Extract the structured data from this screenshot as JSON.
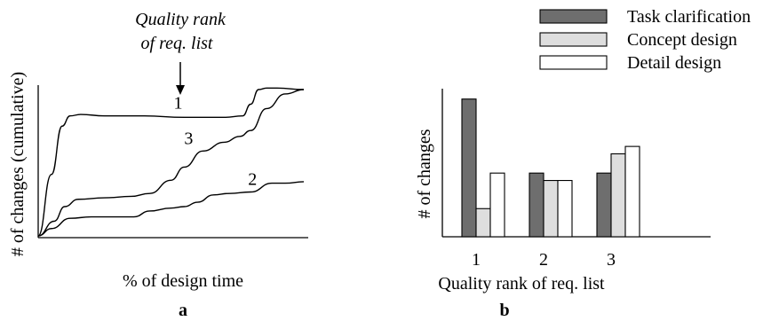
{
  "chart_data": [
    {
      "type": "line",
      "panel_label": "a",
      "xlabel": "% of design time",
      "ylabel": "# of changes (cumulative)",
      "annotation": {
        "text_line1": "Quality rank",
        "text_line2": "of req. list"
      },
      "x_range": [
        0,
        1
      ],
      "y_range": [
        0,
        1
      ],
      "series": [
        {
          "name": "1",
          "x": [
            0,
            0.05,
            0.09,
            0.12,
            0.16,
            0.25,
            0.4,
            0.55,
            0.7,
            0.77,
            0.8,
            0.83,
            0.86,
            0.9,
            1.0
          ],
          "y": [
            0.0,
            0.42,
            0.75,
            0.82,
            0.83,
            0.82,
            0.82,
            0.81,
            0.81,
            0.82,
            0.9,
            1.0,
            1.01,
            1.01,
            1.0
          ]
        },
        {
          "name": "3",
          "x": [
            0,
            0.06,
            0.1,
            0.15,
            0.25,
            0.35,
            0.42,
            0.5,
            0.55,
            0.62,
            0.7,
            0.76,
            0.8,
            0.86,
            0.93,
            1.0
          ],
          "y": [
            0.0,
            0.1,
            0.2,
            0.25,
            0.26,
            0.27,
            0.29,
            0.38,
            0.47,
            0.58,
            0.64,
            0.68,
            0.72,
            0.87,
            0.97,
            1.0
          ]
        },
        {
          "name": "2",
          "x": [
            0,
            0.05,
            0.12,
            0.2,
            0.3,
            0.36,
            0.42,
            0.5,
            0.55,
            0.6,
            0.66,
            0.72,
            0.8,
            0.88,
            0.93,
            1.0
          ],
          "y": [
            0.0,
            0.05,
            0.12,
            0.13,
            0.13,
            0.13,
            0.17,
            0.19,
            0.2,
            0.23,
            0.28,
            0.29,
            0.3,
            0.36,
            0.36,
            0.37
          ]
        }
      ]
    },
    {
      "type": "bar",
      "panel_label": "b",
      "xlabel": "Quality rank of req. list",
      "ylabel": "# of changes",
      "categories": [
        "1",
        "2",
        "3"
      ],
      "y_range": [
        0,
        10
      ],
      "legend_position": "top-right",
      "series": [
        {
          "name": "Task clarification",
          "color": "#6e6e6e",
          "values": [
            9.3,
            4.3,
            4.3
          ]
        },
        {
          "name": "Concept design",
          "color": "#dedede",
          "values": [
            1.9,
            3.8,
            5.6
          ]
        },
        {
          "name": "Detail design",
          "color": "#ffffff",
          "values": [
            4.3,
            3.8,
            6.1
          ]
        }
      ]
    }
  ]
}
